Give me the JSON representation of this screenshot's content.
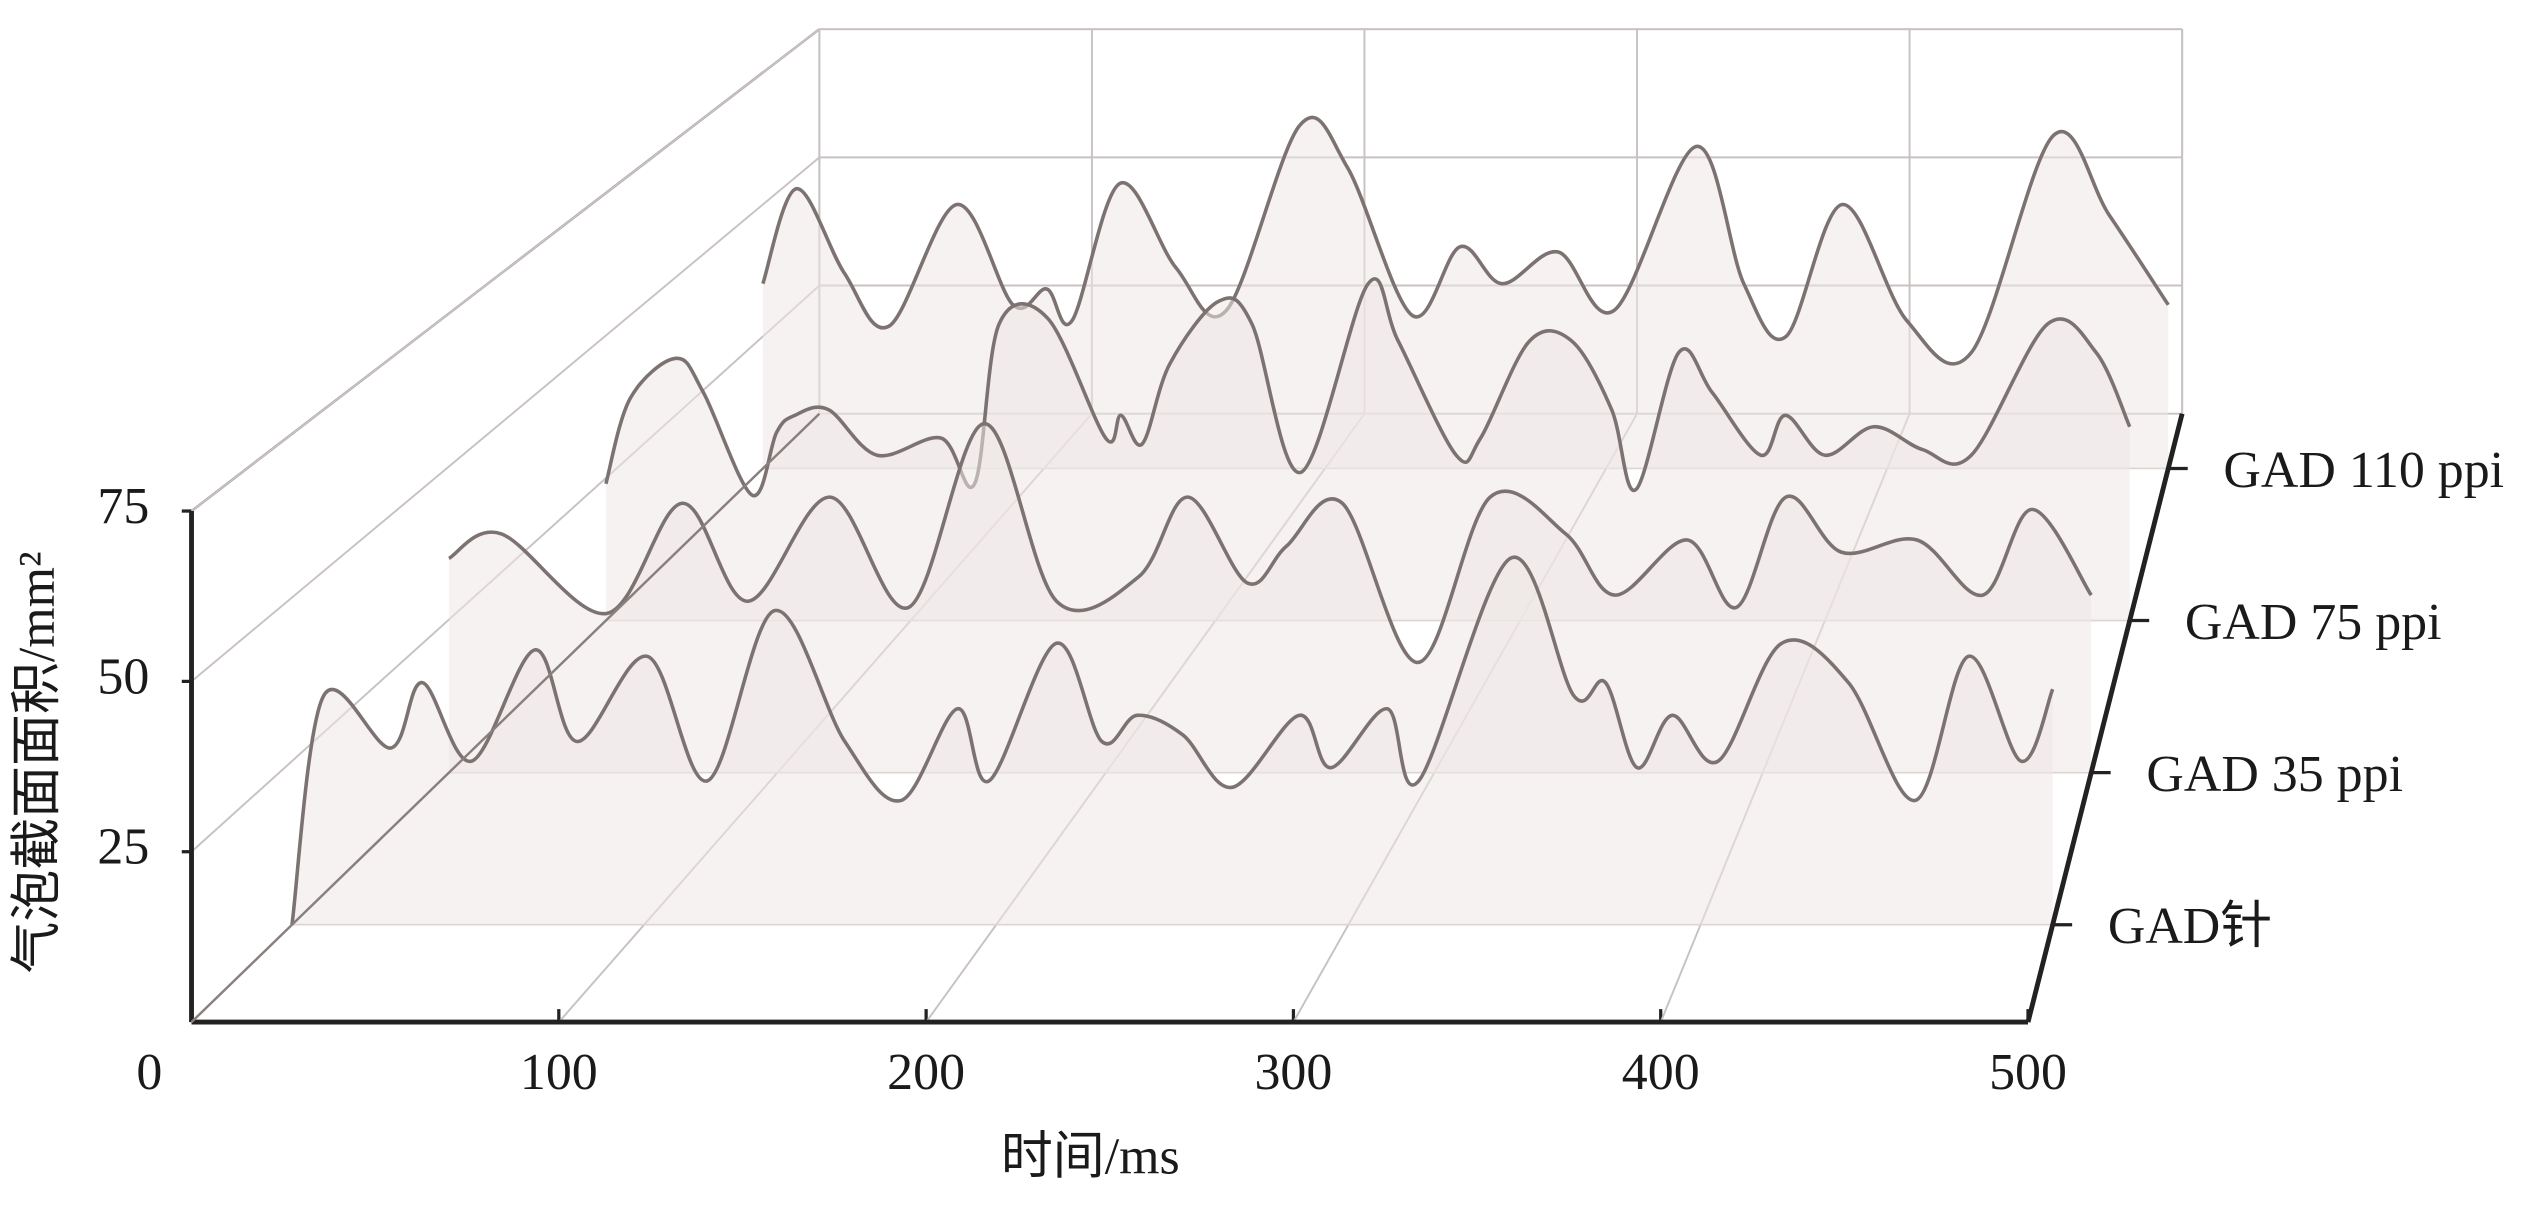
{
  "chart_data": {
    "type": "waterfall3d",
    "xlabel": "时间/ms",
    "ylabel": "气泡截面面积/mm²",
    "xlim": [
      0,
      500
    ],
    "ylim": [
      0,
      75
    ],
    "xticks": [
      0,
      100,
      200,
      300,
      400,
      500
    ],
    "yticks": [
      25,
      50,
      75
    ],
    "grid": true,
    "series": [
      {
        "name": "GAD针",
        "color": "#7d7272",
        "x": [
          0,
          9,
          28,
          37,
          51,
          69,
          81,
          101,
          118,
          137,
          157,
          173,
          189,
          198,
          217,
          230,
          240,
          253,
          267,
          286,
          295,
          311,
          320,
          346,
          364,
          373,
          382,
          392,
          405,
          423,
          442,
          461,
          476,
          491,
          500
        ],
        "values": [
          0,
          35,
          27,
          37,
          25,
          42,
          28,
          41,
          22,
          48,
          28,
          19,
          33,
          22,
          43,
          28,
          32,
          29,
          21,
          32,
          24,
          33,
          22,
          56,
          35,
          37,
          24,
          32,
          25,
          43,
          37,
          19,
          41,
          25,
          36
        ]
      },
      {
        "name": "GAD 35 ppi",
        "color": "#7d7272",
        "x": [
          0,
          16,
          48,
          71,
          91,
          116,
          140,
          163,
          185,
          210,
          225,
          243,
          255,
          272,
          295,
          317,
          340,
          355,
          377,
          392,
          407,
          424,
          447,
          467,
          482,
          500
        ],
        "values": [
          35,
          39,
          26,
          44,
          28,
          45,
          27,
          57,
          28,
          32,
          45,
          31,
          37,
          44,
          18,
          45,
          39,
          29,
          38,
          27,
          45,
          36,
          38,
          29,
          43,
          29
        ]
      },
      {
        "name": "GAD 75 ppi",
        "color": "#7d7272",
        "x": [
          0,
          8,
          23,
          32,
          48,
          56,
          62,
          73,
          89,
          110,
          121,
          129,
          145,
          164,
          169,
          176,
          185,
          201,
          212,
          228,
          250,
          260,
          279,
          287,
          303,
          317,
          330,
          338,
          352,
          363,
          379,
          387,
          400,
          416,
          432,
          448,
          473,
          489,
          500
        ],
        "values": [
          24,
          39,
          46,
          40,
          22,
          33,
          36,
          37,
          29,
          32,
          24,
          52,
          53,
          32,
          36,
          31,
          45,
          56,
          52,
          26,
          59,
          49,
          29,
          32,
          49,
          49,
          37,
          23,
          47,
          40,
          29,
          36,
          29,
          34,
          30,
          29,
          52,
          47,
          34
        ]
      },
      {
        "name": "GAD 110 ppi",
        "color": "#7d7272",
        "x": [
          0,
          12,
          29,
          45,
          69,
          89,
          101,
          110,
          127,
          147,
          165,
          191,
          208,
          231,
          248,
          263,
          283,
          303,
          332,
          349,
          364,
          384,
          407,
          430,
          459,
          479,
          500
        ],
        "values": [
          35,
          53,
          37,
          27,
          50,
          31,
          34,
          28,
          54,
          38,
          30,
          65,
          57,
          29,
          42,
          35,
          41,
          30,
          61,
          35,
          25,
          50,
          28,
          22,
          63,
          48,
          31
        ]
      }
    ]
  }
}
